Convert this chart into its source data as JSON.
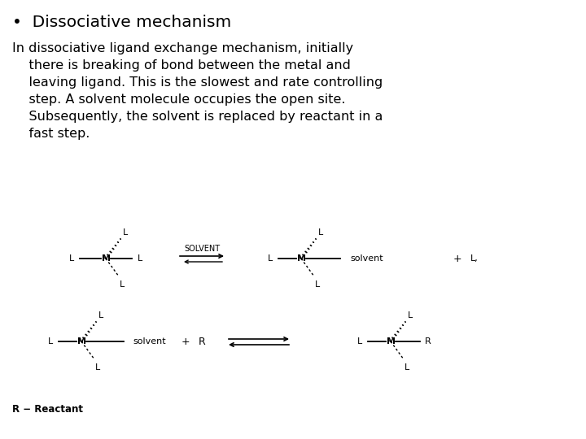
{
  "title_bullet": "•  Dissociative mechanism",
  "body_text": "In dissociative ligand exchange mechanism, initially\n    there is breaking of bond between the metal and\n    leaving ligand. This is the slowest and rate controlling\n    step. A solvent molecule occupies the open site.\n    Subsequently, the solvent is replaced by reactant in a\n    fast step.",
  "footnote": "R − Reactant",
  "bg_color": "#ffffff",
  "text_color": "#000000",
  "title_fontsize": 14.5,
  "body_fontsize": 11.5,
  "footnote_fontsize": 8.5,
  "diagram_label_fontsize": 8,
  "solvent_label_fontsize": 7
}
